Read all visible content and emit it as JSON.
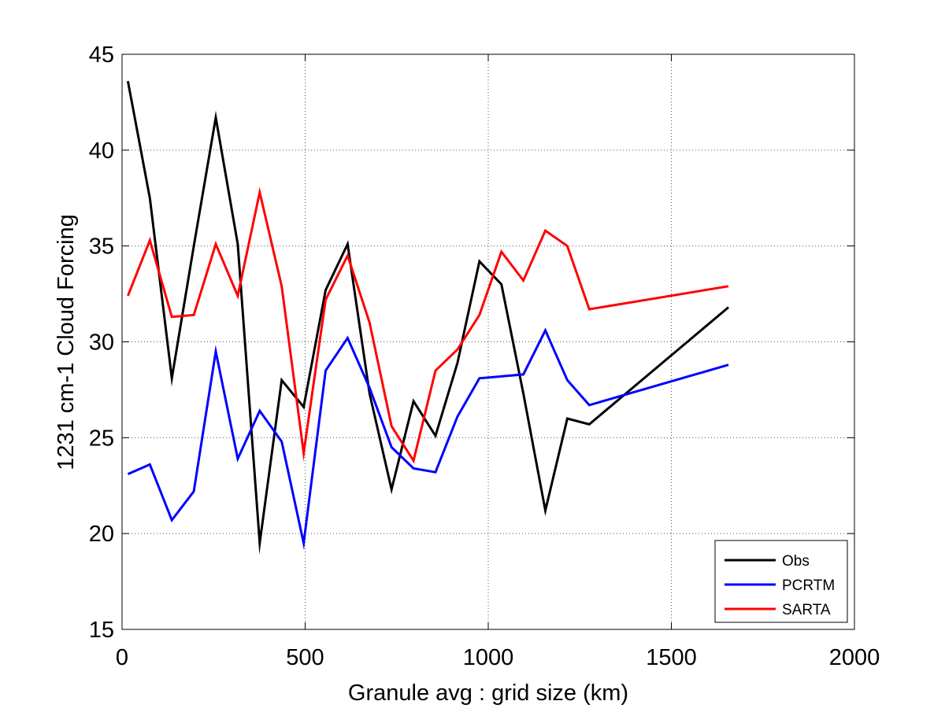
{
  "chart_data": {
    "type": "line",
    "title": "",
    "xlabel": "Granule avg : grid size (km)",
    "ylabel": "1231 cm-1 Cloud Forcing",
    "xlim": [
      0,
      2000
    ],
    "ylim": [
      15,
      45
    ],
    "xticks": [
      0,
      500,
      1000,
      1500,
      2000
    ],
    "yticks": [
      15,
      20,
      25,
      30,
      35,
      40,
      45
    ],
    "xtick_labels": [
      "0",
      "500",
      "1000",
      "1500",
      "2000"
    ],
    "ytick_labels": [
      "15",
      "20",
      "25",
      "30",
      "35",
      "40",
      "45"
    ],
    "grid": true,
    "legend_position": "bottom-right",
    "x": [
      16,
      76,
      136,
      196,
      256,
      316,
      376,
      436,
      496,
      556,
      616,
      676,
      736,
      796,
      856,
      916,
      976,
      1036,
      1096,
      1156,
      1216,
      1276,
      1656
    ],
    "series": [
      {
        "name": "Obs",
        "color": "#000000",
        "values": [
          43.6,
          37.5,
          28.1,
          35.0,
          41.7,
          35.1,
          19.5,
          28.0,
          26.6,
          32.7,
          35.1,
          27.3,
          22.3,
          26.9,
          25.1,
          28.9,
          34.2,
          33.0,
          27.3,
          21.2,
          26.0,
          25.7,
          31.8
        ]
      },
      {
        "name": "PCRTM",
        "color": "#0000ff",
        "values": [
          23.1,
          23.6,
          20.7,
          22.2,
          29.5,
          23.9,
          26.4,
          24.8,
          19.5,
          28.5,
          30.2,
          27.6,
          24.5,
          23.4,
          23.2,
          26.1,
          28.1,
          28.2,
          28.3,
          30.6,
          28.0,
          26.7,
          28.8
        ]
      },
      {
        "name": "SARTA",
        "color": "#ff0000",
        "values": [
          32.4,
          35.3,
          31.3,
          31.4,
          35.1,
          32.4,
          37.8,
          32.9,
          24.2,
          32.2,
          34.5,
          31.0,
          25.6,
          23.8,
          28.5,
          29.6,
          31.4,
          34.7,
          33.2,
          35.8,
          35.0,
          31.7,
          32.9
        ]
      }
    ]
  }
}
